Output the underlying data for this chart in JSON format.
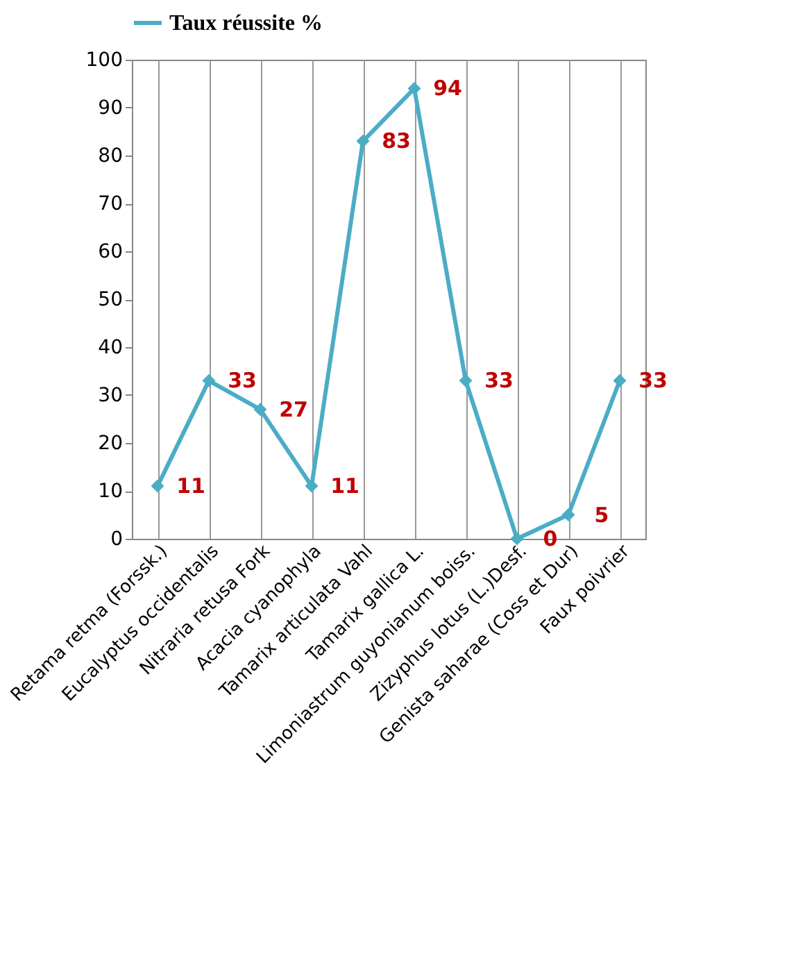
{
  "chart_data": {
    "type": "line",
    "categories": [
      "Retama retma (Forssk.)",
      "Eucalyptus occidentalis",
      "Nitraria retusa Fork",
      "Acacia cyanophyla",
      "Tamarix articulata Vahl",
      "Tamarix gallica L.",
      "Limoniastrum guyonianum boiss.",
      "Zizyphus lotus (L.)Desf.",
      "Genista saharae (Coss et Dur)",
      "Faux poivrier"
    ],
    "series": [
      {
        "name": "Taux réussite %",
        "color": "#4bacc6",
        "values": [
          11,
          33,
          27,
          11,
          83,
          94,
          33,
          0,
          5,
          33
        ]
      }
    ],
    "ylim": [
      0,
      100
    ],
    "yticks": [
      0,
      10,
      20,
      30,
      40,
      50,
      60,
      70,
      80,
      90,
      100
    ],
    "grid": "x",
    "legend": "top",
    "marker": "diamond",
    "line_style": "solid",
    "data_labels": true
  }
}
